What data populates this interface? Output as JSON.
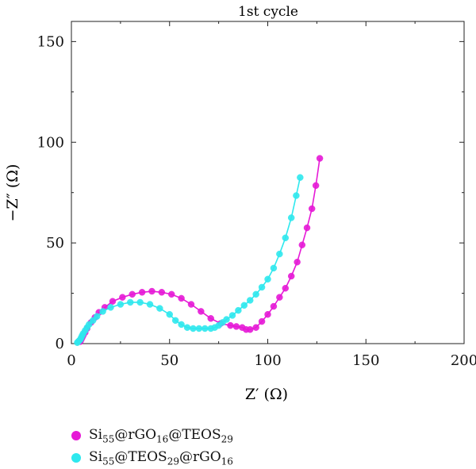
{
  "chart_data": {
    "type": "scatter",
    "title": "1st cycle",
    "xlabel": "Z′ (Ω)",
    "ylabel": "−Z″ (Ω)",
    "xlim": [
      0,
      200
    ],
    "ylim": [
      0,
      160
    ],
    "xticks": [
      0,
      50,
      100,
      150,
      200
    ],
    "yticks": [
      0,
      50,
      100,
      150
    ],
    "grid": false,
    "legend_position": "bottom-left",
    "series": [
      {
        "name": "Si55@rGO16@TEOS29",
        "color": "#e619d6",
        "x": [
          4.5,
          5.0,
          5.5,
          6.0,
          7.0,
          8.0,
          10.0,
          12.0,
          14.0,
          17.0,
          21.0,
          26.0,
          31.0,
          36.0,
          41.0,
          46.0,
          51.0,
          56.0,
          61.0,
          66.0,
          71.0,
          76.0,
          81.0,
          84.0,
          87.0,
          89.0,
          91.0,
          94.0,
          97.0,
          100.0,
          103.0,
          106.0,
          109.0,
          112.0,
          115.0,
          117.5,
          120.0,
          122.5,
          124.5,
          126.5
        ],
        "y": [
          1.0,
          2.0,
          3.0,
          4.0,
          5.5,
          7.5,
          10.5,
          13.0,
          15.5,
          18.0,
          21.0,
          23.0,
          24.5,
          25.5,
          26.0,
          25.5,
          24.5,
          22.5,
          19.5,
          16.0,
          12.5,
          10.0,
          9.0,
          8.5,
          8.0,
          7.0,
          7.0,
          8.0,
          11.0,
          14.5,
          18.5,
          23.0,
          27.5,
          33.5,
          40.5,
          49.0,
          57.5,
          67.0,
          78.5,
          92.0
        ]
      },
      {
        "name": "Si55@TEOS29@rGO16",
        "color": "#2ee8ee",
        "x": [
          3.0,
          3.5,
          4.0,
          4.5,
          5.0,
          5.5,
          6.0,
          7.0,
          8.0,
          9.0,
          11.0,
          13.0,
          16.0,
          20.0,
          25.0,
          30.0,
          35.0,
          40.0,
          45.0,
          50.0,
          53.0,
          56.0,
          59.0,
          62.0,
          65.0,
          68.0,
          71.0,
          73.0,
          75.0,
          77.0,
          79.0,
          82.0,
          85.0,
          88.0,
          91.0,
          94.0,
          97.0,
          100.0,
          103.0,
          106.0,
          109.0,
          112.0,
          114.5,
          116.5
        ],
        "y": [
          0.5,
          1.0,
          1.5,
          2.0,
          3.0,
          4.0,
          5.0,
          6.5,
          8.0,
          9.5,
          11.5,
          13.5,
          16.0,
          18.0,
          19.5,
          20.5,
          20.5,
          19.5,
          17.5,
          14.5,
          11.5,
          9.5,
          8.0,
          7.5,
          7.5,
          7.5,
          7.5,
          8.0,
          9.0,
          10.5,
          12.0,
          14.0,
          16.5,
          19.0,
          21.5,
          24.5,
          28.0,
          32.0,
          37.5,
          44.5,
          52.5,
          62.5,
          73.5,
          82.5
        ]
      }
    ]
  }
}
